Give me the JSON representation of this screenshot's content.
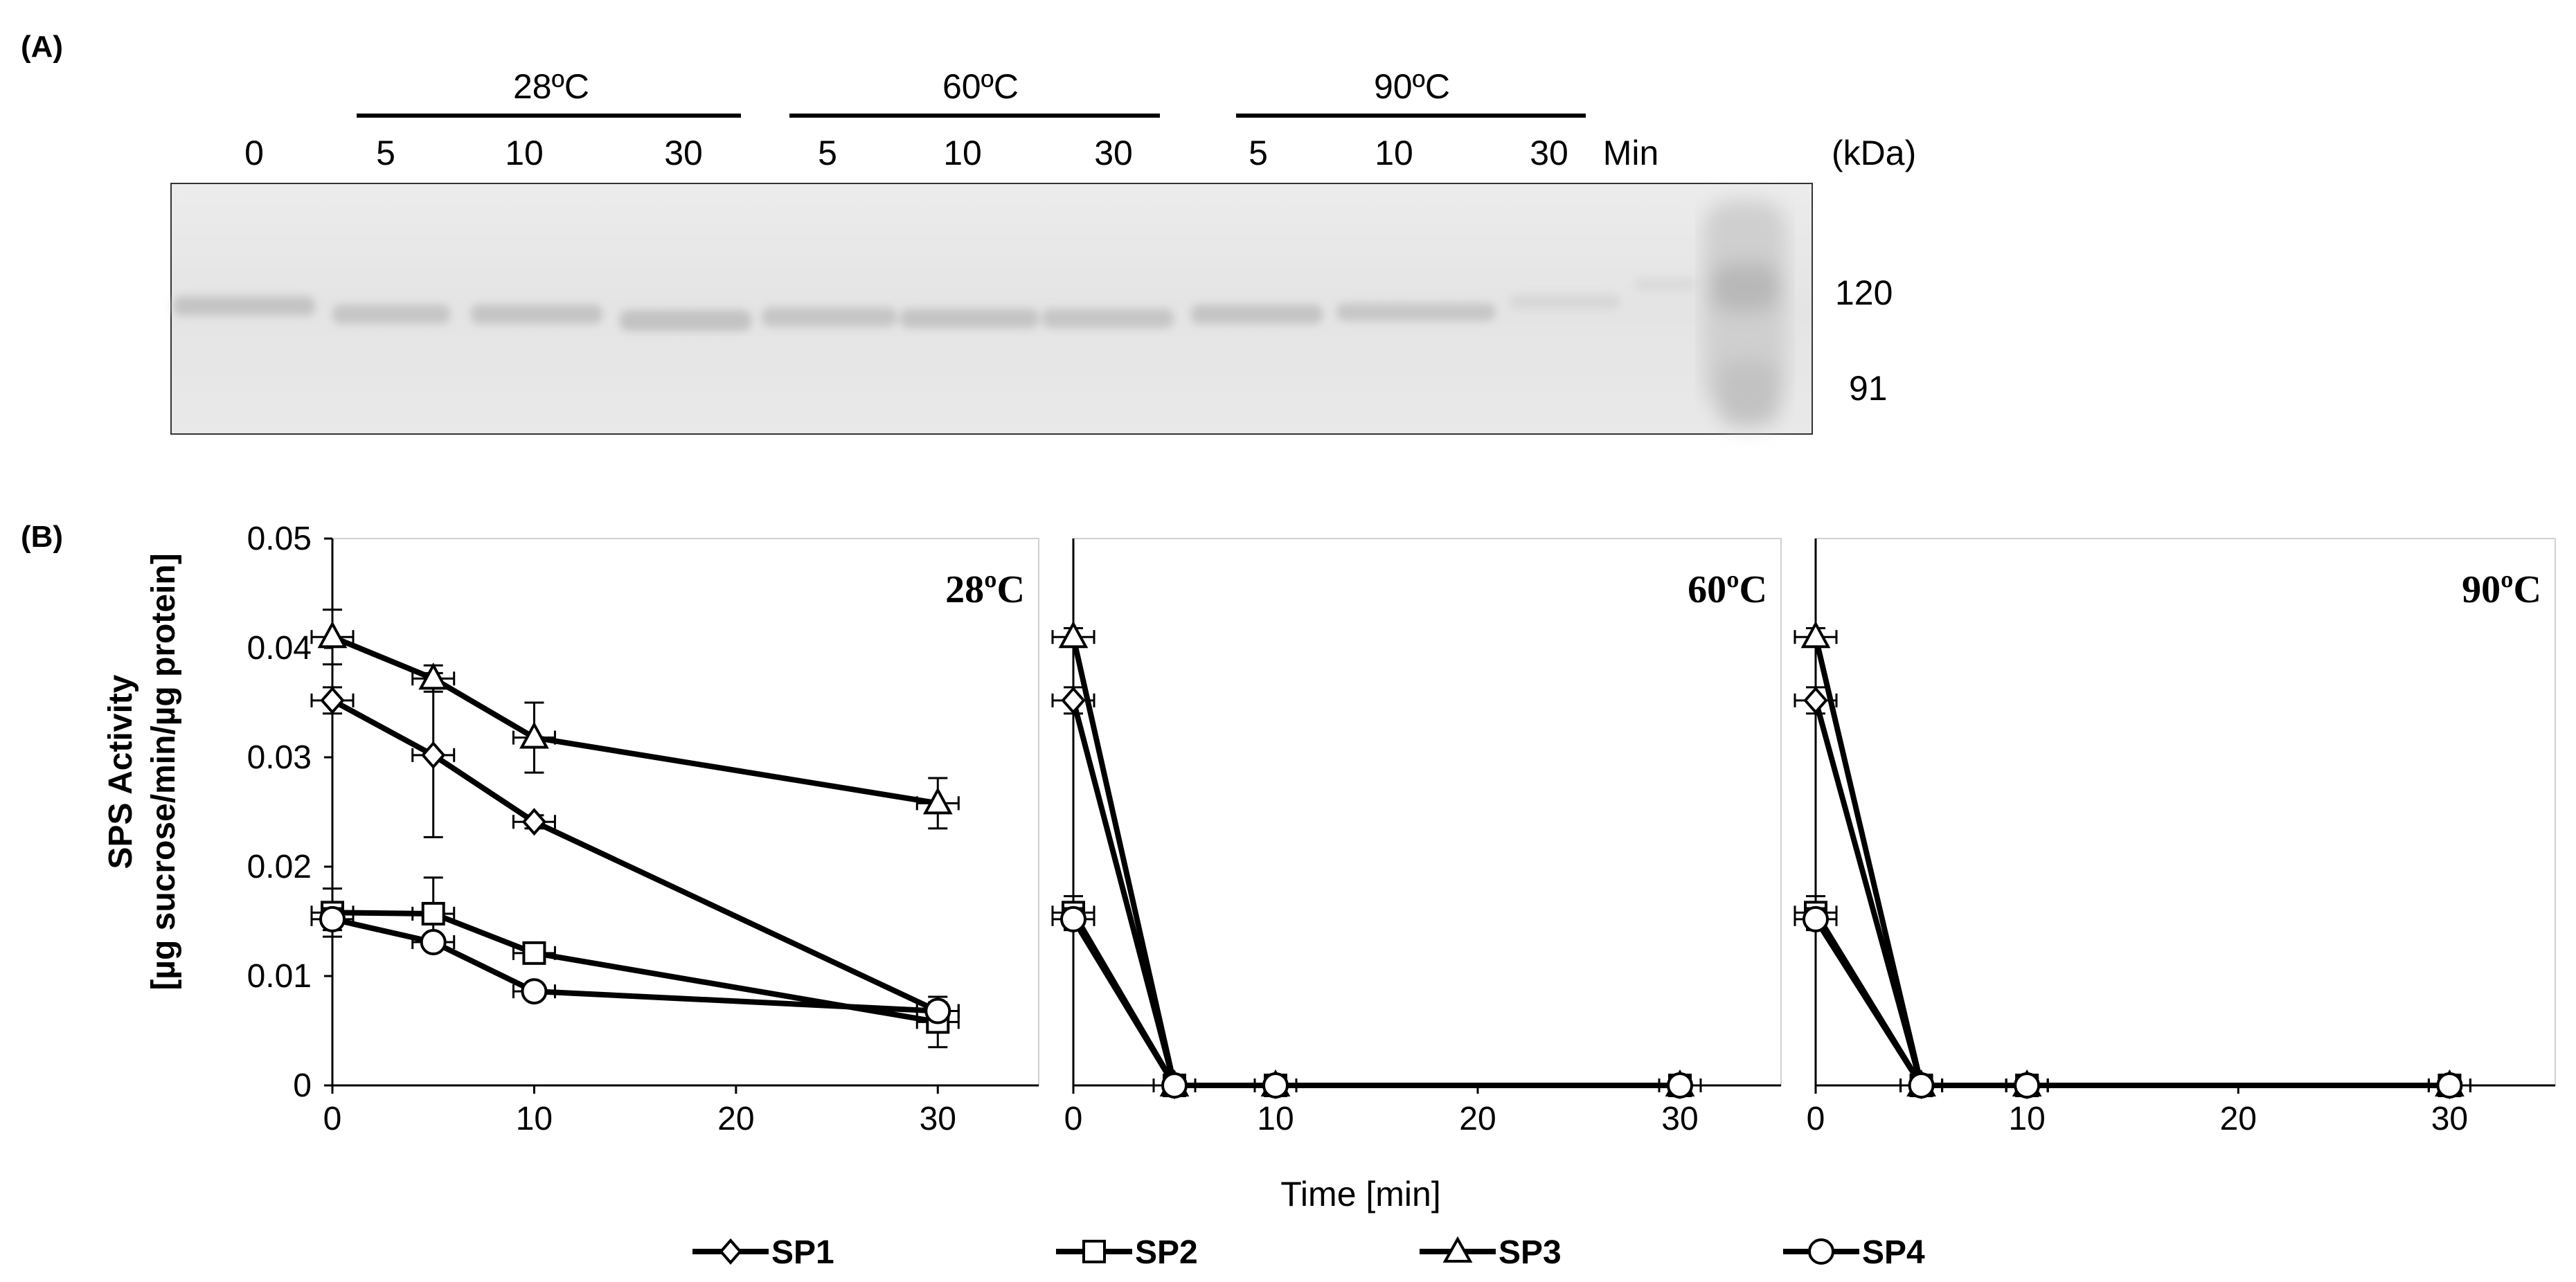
{
  "panel_a": {
    "label": "(A)",
    "groups": [
      {
        "temp": "28ºC"
      },
      {
        "temp": "60ºC"
      },
      {
        "temp": "90ºC"
      }
    ],
    "lanes": [
      "0",
      "5",
      "10",
      "30",
      "5",
      "10",
      "30",
      "5",
      "10",
      "30"
    ],
    "time_unit": "Min",
    "kda_label": "(kDa)",
    "markers": [
      "120",
      "91"
    ]
  },
  "panel_b": {
    "label": "(B)",
    "ylabel_line1": "SPS  Activity",
    "ylabel_line2": "[µg sucrose/min/µg protein]",
    "xlabel": "Time [min]"
  },
  "legend": [
    {
      "name": "SP1",
      "marker": "diamond"
    },
    {
      "name": "SP2",
      "marker": "square"
    },
    {
      "name": "SP3",
      "marker": "triangle"
    },
    {
      "name": "SP4",
      "marker": "circle"
    }
  ],
  "chart_data": [
    {
      "type": "line",
      "title": "28ºC",
      "xlabel": "",
      "ylabel": "SPS  Activity [µg sucrose/min/µg protein]",
      "xlim": [
        0,
        35
      ],
      "ylim": [
        0,
        0.05
      ],
      "xticks": [
        0,
        10,
        20,
        30
      ],
      "yticks": [
        0,
        0.01,
        0.02,
        0.03,
        0.04,
        0.05
      ],
      "ytick_labels": [
        "0",
        "0.01",
        "0.02",
        "0.03",
        "0.04",
        "0.05"
      ],
      "x": [
        0,
        5,
        10,
        30
      ],
      "series": [
        {
          "name": "SP1",
          "marker": "diamond",
          "values": [
            0.0352,
            0.0302,
            0.0241,
            0.0068
          ],
          "yerr": [
            0.0012,
            0.0075,
            0.0006,
            0.0008
          ]
        },
        {
          "name": "SP2",
          "marker": "square",
          "values": [
            0.0158,
            0.0157,
            0.0121,
            0.0058
          ],
          "yerr": [
            0.0022,
            0.0033,
            0.0007,
            0.0023
          ]
        },
        {
          "name": "SP3",
          "marker": "triangle",
          "values": [
            0.041,
            0.0372,
            0.0318,
            0.0258
          ],
          "yerr": [
            0.0025,
            0.0012,
            0.0032,
            0.0023
          ]
        },
        {
          "name": "SP4",
          "marker": "circle",
          "values": [
            0.0152,
            0.0131,
            0.0086,
            0.0068
          ],
          "yerr": [
            0.001,
            0.0006,
            0.0005,
            0.0007
          ]
        }
      ]
    },
    {
      "type": "line",
      "title": "60ºC",
      "xlabel": "Time [min]",
      "ylabel": "",
      "xlim": [
        0,
        35
      ],
      "ylim": [
        0,
        0.05
      ],
      "xticks": [
        0,
        10,
        20,
        30
      ],
      "x": [
        0,
        5,
        10,
        30
      ],
      "series": [
        {
          "name": "SP1",
          "marker": "diamond",
          "values": [
            0.0352,
            0,
            0,
            0
          ],
          "yerr": [
            0.0012,
            0,
            0,
            0
          ]
        },
        {
          "name": "SP2",
          "marker": "square",
          "values": [
            0.0158,
            0,
            0,
            0
          ],
          "yerr": [
            0.0015,
            0,
            0,
            0
          ]
        },
        {
          "name": "SP3",
          "marker": "triangle",
          "values": [
            0.041,
            0,
            0,
            0
          ],
          "yerr": [
            0.0008,
            0,
            0,
            0
          ]
        },
        {
          "name": "SP4",
          "marker": "circle",
          "values": [
            0.0152,
            0,
            0,
            0
          ],
          "yerr": [
            0.001,
            0,
            0,
            0
          ]
        }
      ]
    },
    {
      "type": "line",
      "title": "90ºC",
      "xlabel": "",
      "ylabel": "",
      "xlim": [
        0,
        35
      ],
      "ylim": [
        0,
        0.05
      ],
      "xticks": [
        0,
        10,
        20,
        30
      ],
      "x": [
        0,
        5,
        10,
        30
      ],
      "series": [
        {
          "name": "SP1",
          "marker": "diamond",
          "values": [
            0.0352,
            0,
            0,
            0
          ],
          "yerr": [
            0.0012,
            0,
            0,
            0
          ]
        },
        {
          "name": "SP2",
          "marker": "square",
          "values": [
            0.0158,
            0,
            0,
            0
          ],
          "yerr": [
            0.0015,
            0,
            0,
            0
          ]
        },
        {
          "name": "SP3",
          "marker": "triangle",
          "values": [
            0.041,
            0,
            0,
            0
          ],
          "yerr": [
            0.0008,
            0,
            0,
            0
          ]
        },
        {
          "name": "SP4",
          "marker": "circle",
          "values": [
            0.0152,
            0,
            0,
            0
          ],
          "yerr": [
            0.001,
            0,
            0,
            0
          ]
        }
      ]
    }
  ]
}
